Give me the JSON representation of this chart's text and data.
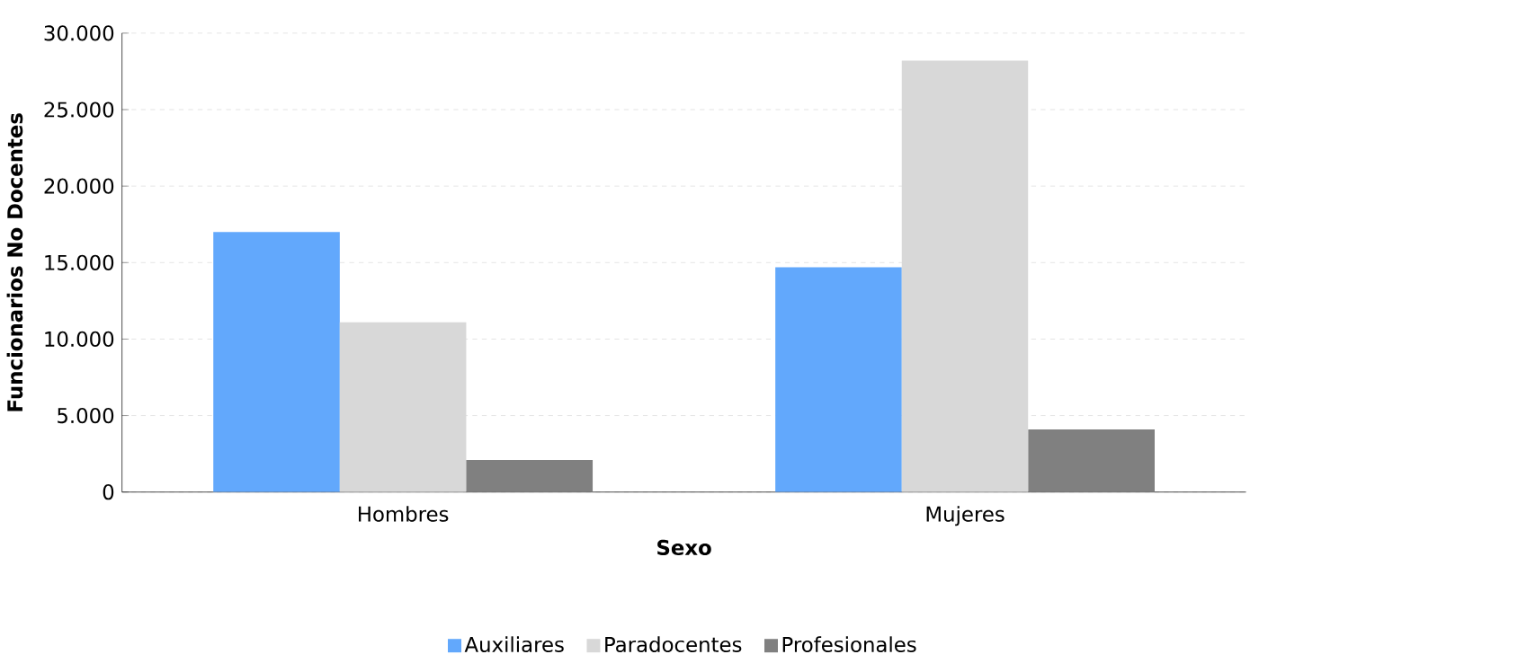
{
  "chart_data": {
    "type": "bar",
    "xlabel": "Sexo",
    "ylabel": "Funcionarios No Docentes",
    "categories": [
      "Hombres",
      "Mujeres"
    ],
    "series": [
      {
        "name": "Auxiliares",
        "color": "#62a8fc",
        "values": [
          17000,
          14700
        ]
      },
      {
        "name": "Paradocentes",
        "color": "#d8d8d8",
        "values": [
          11100,
          28200
        ]
      },
      {
        "name": "Profesionales",
        "color": "#808080",
        "values": [
          2100,
          4100
        ]
      }
    ],
    "ylim": [
      0,
      30000
    ],
    "yticks": [
      0,
      {
        "value": 5000,
        "label": "5.000"
      },
      {
        "value": 10000,
        "label": "10.000"
      },
      {
        "value": 15000,
        "label": "15.000"
      },
      {
        "value": 20000,
        "label": "20.000"
      },
      {
        "value": 25000,
        "label": "25.000"
      },
      {
        "value": 30000,
        "label": "30.000"
      }
    ],
    "grid": "y",
    "legend": "bottom"
  }
}
